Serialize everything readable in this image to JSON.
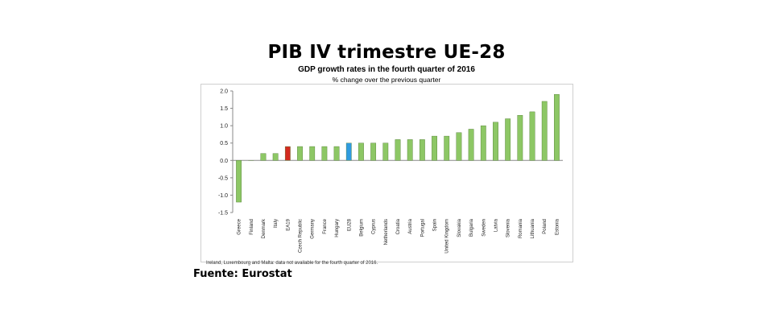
{
  "page": {
    "heading": "PIB IV trimestre UE-28",
    "source": "Fuente: Eurostat"
  },
  "chart_data": {
    "type": "bar",
    "title": "GDP growth rates in the fourth quarter of 2016",
    "subtitle": "% change over the previous quarter",
    "footnote": "Ireland, Luxembourg and Malta: data not available for the fourth quarter of 2016.",
    "categories": [
      "Greece",
      "Finland",
      "Denmark",
      "Italy",
      "EA19",
      "Czech Republic",
      "Germany",
      "France",
      "Hungary",
      "EU28",
      "Belgium",
      "Cyprus",
      "Netherlands",
      "Croatia",
      "Austria",
      "Portugal",
      "Spain",
      "United Kingdom",
      "Slovakia",
      "Bulgaria",
      "Sweden",
      "Latvia",
      "Slovenia",
      "Romania",
      "Lithuania",
      "Poland",
      "Estonia"
    ],
    "values": [
      -1.2,
      0.0,
      0.2,
      0.2,
      0.4,
      0.4,
      0.4,
      0.4,
      0.4,
      0.5,
      0.5,
      0.5,
      0.5,
      0.6,
      0.6,
      0.6,
      0.7,
      0.7,
      0.8,
      0.9,
      1.0,
      1.1,
      1.2,
      1.3,
      1.4,
      1.7,
      1.9
    ],
    "highlight": {
      "EA19": "#d42a20",
      "EU28": "#2f9be0"
    },
    "default_color": "#8dc765",
    "yticks": [
      "2.0",
      "1.5",
      "1.0",
      "0.5",
      "0.0",
      "-0.5",
      "-1.0",
      "-1.5"
    ],
    "ylim": [
      -1.5,
      2.0
    ],
    "grid": false,
    "legend": "none"
  }
}
